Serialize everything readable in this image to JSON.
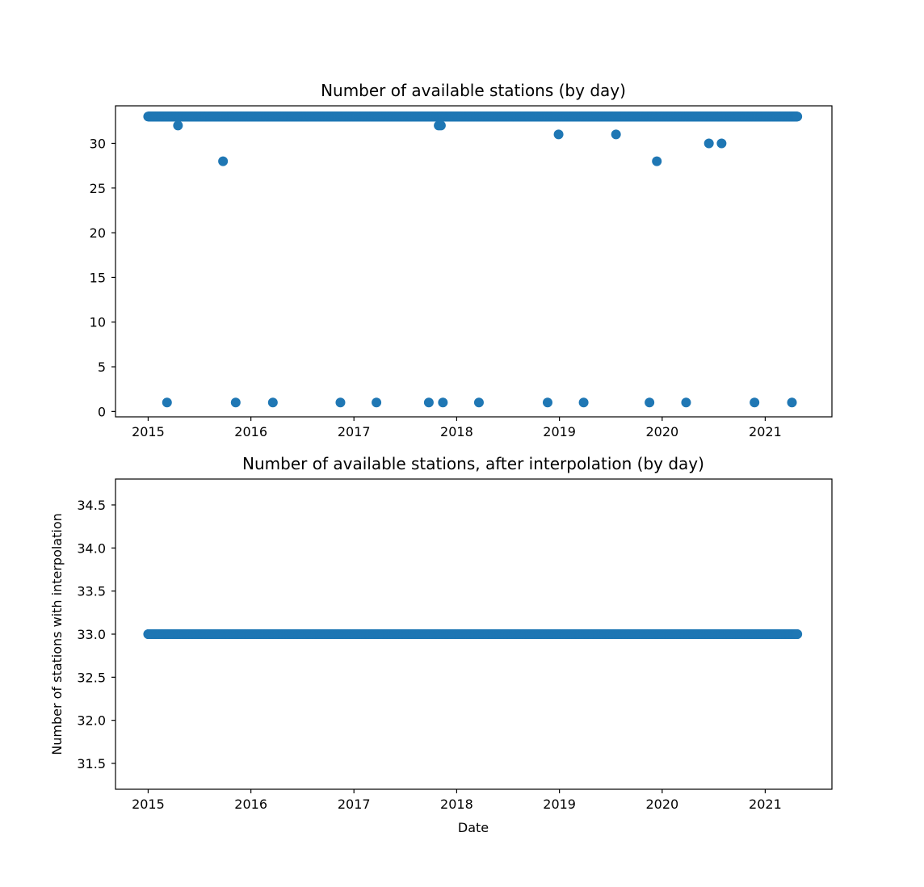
{
  "chart_data": [
    {
      "type": "scatter",
      "title": "Number of available stations (by day)",
      "xlabel": "",
      "ylabel": "",
      "x_axis": "date",
      "xlim": [
        "2014-09-07",
        "2021-08-26"
      ],
      "ylim": [
        -0.6,
        34.2
      ],
      "xticks": [
        2015,
        2016,
        2017,
        2018,
        2019,
        2020,
        2021
      ],
      "yticks": [
        0,
        5,
        10,
        15,
        20,
        25,
        30
      ],
      "grid": false,
      "color": "#1f77b4",
      "baseline": {
        "y": 33,
        "start": "2015-01-01",
        "end": "2021-04-25",
        "frequency": "daily"
      },
      "series": [
        {
          "points": [
            [
              "2015-03-09",
              1
            ],
            [
              "2015-04-17",
              32
            ],
            [
              "2015-09-24",
              28
            ],
            [
              "2015-11-08",
              1
            ],
            [
              "2016-03-19",
              1
            ],
            [
              "2016-11-14",
              1
            ],
            [
              "2017-03-22",
              1
            ],
            [
              "2017-09-24",
              1
            ],
            [
              "2017-10-29",
              32
            ],
            [
              "2017-11-06",
              32
            ],
            [
              "2017-11-13",
              1
            ],
            [
              "2018-03-21",
              1
            ],
            [
              "2018-11-20",
              1
            ],
            [
              "2018-12-29",
              31
            ],
            [
              "2019-03-28",
              1
            ],
            [
              "2019-07-21",
              31
            ],
            [
              "2019-11-17",
              1
            ],
            [
              "2019-12-13",
              28
            ],
            [
              "2020-03-26",
              1
            ],
            [
              "2020-06-15",
              30
            ],
            [
              "2020-07-30",
              30
            ],
            [
              "2020-11-24",
              1
            ],
            [
              "2021-04-06",
              1
            ]
          ]
        }
      ]
    },
    {
      "type": "scatter",
      "title": "Number of available stations, after interpolation (by day)",
      "xlabel": "Date",
      "ylabel": "Number of stations with interpolation",
      "x_axis": "date",
      "xlim": [
        "2014-09-07",
        "2021-08-26"
      ],
      "ylim": [
        31.2,
        34.8
      ],
      "xticks": [
        2015,
        2016,
        2017,
        2018,
        2019,
        2020,
        2021
      ],
      "yticks": [
        31.5,
        32.0,
        32.5,
        33.0,
        33.5,
        34.0,
        34.5
      ],
      "ytick_labels": [
        "31.5",
        "32.0",
        "32.5",
        "33.0",
        "33.5",
        "34.0",
        "34.5"
      ],
      "grid": false,
      "color": "#1f77b4",
      "baseline": {
        "y": 33,
        "start": "2015-01-01",
        "end": "2021-04-25",
        "frequency": "daily"
      },
      "series": [
        {
          "points": []
        }
      ]
    }
  ]
}
